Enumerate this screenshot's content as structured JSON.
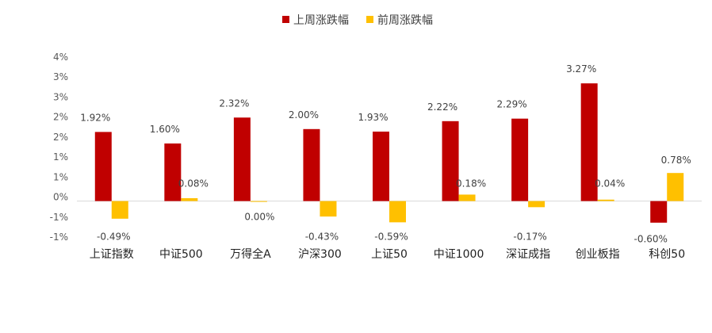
{
  "chart_data": {
    "type": "bar",
    "categories": [
      "上证指数",
      "中证500",
      "万得全A",
      "沪深300",
      "上证50",
      "中证1000",
      "深证成指",
      "创业板指",
      "科创50"
    ],
    "series": [
      {
        "name": "上周涨跌幅",
        "color": "#C00000",
        "values": [
          1.92,
          1.6,
          2.32,
          2.0,
          1.93,
          2.22,
          2.29,
          3.27,
          -0.6
        ],
        "labels": [
          "1.92%",
          "1.60%",
          "2.32%",
          "2.00%",
          "1.93%",
          "2.22%",
          "2.29%",
          "3.27%",
          "-0.60%"
        ]
      },
      {
        "name": "前周涨跌幅",
        "color": "#FFC000",
        "values": [
          -0.49,
          0.08,
          0.0,
          -0.43,
          -0.59,
          0.18,
          -0.17,
          0.04,
          0.78
        ],
        "labels": [
          "-0.49%",
          "0.08%",
          "0.00%",
          "-0.43%",
          "-0.59%",
          "0.18%",
          "-0.17%",
          "0.04%",
          "0.78%"
        ]
      }
    ],
    "y_ticks": [
      "4%",
      "3%",
      "3%",
      "2%",
      "2%",
      "1%",
      "1%",
      "0%",
      "-1%",
      "-1%"
    ],
    "ylim": [
      -1.0,
      4.0
    ],
    "legend_position": "top-center",
    "grid": false
  }
}
